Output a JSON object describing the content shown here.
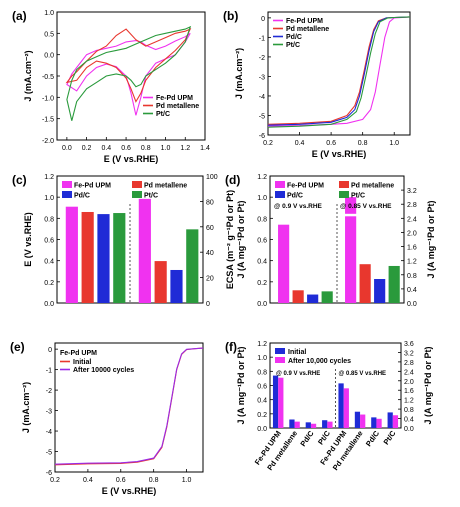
{
  "colors": {
    "magenta": "#f032f0",
    "red": "#e8372e",
    "blue": "#1f2bd6",
    "green": "#2a9a3c",
    "purple": "#9a2be6",
    "axis": "#000000"
  },
  "chart_data": [
    {
      "id": "a",
      "panel_label": "(a)",
      "type": "line",
      "xlabel": "E (V vs.RHE)",
      "ylabel": "J (mA.cm⁻²)",
      "xlim": [
        -0.1,
        1.4
      ],
      "ylim": [
        -2.0,
        1.0
      ],
      "xticks": [
        "0.0",
        "0.2",
        "0.4",
        "0.6",
        "0.8",
        "1.0",
        "1.2",
        "1.4"
      ],
      "yticks": [
        "-2.0",
        "-1.5",
        "-1.0",
        "-0.5",
        "0.0",
        "0.5",
        "1.0"
      ],
      "legend_position": "bottom-right",
      "series": [
        {
          "name": "Fe-Pd UPM",
          "color": "magenta",
          "closed": true,
          "x": [
            0.0,
            0.05,
            0.1,
            0.2,
            0.3,
            0.4,
            0.5,
            0.6,
            0.7,
            0.75,
            0.8,
            0.9,
            1.0,
            1.1,
            1.2,
            1.25,
            1.2,
            1.1,
            1.0,
            0.9,
            0.8,
            0.75,
            0.7,
            0.65,
            0.6,
            0.5,
            0.4,
            0.3,
            0.2,
            0.1,
            0.0
          ],
          "y": [
            -0.7,
            -0.45,
            -0.3,
            0.0,
            0.1,
            0.15,
            0.2,
            0.3,
            0.33,
            0.3,
            0.22,
            0.12,
            0.2,
            0.32,
            0.42,
            0.5,
            0.3,
            0.0,
            -0.1,
            -0.2,
            -0.5,
            -1.0,
            -1.42,
            -0.9,
            -0.5,
            -0.28,
            -0.22,
            -0.3,
            -0.5,
            -0.85,
            -0.7
          ]
        },
        {
          "name": "Pd metallene",
          "color": "red",
          "closed": true,
          "x": [
            0.0,
            0.05,
            0.1,
            0.2,
            0.3,
            0.4,
            0.5,
            0.6,
            0.7,
            0.8,
            0.9,
            1.0,
            1.1,
            1.2,
            1.25,
            1.2,
            1.1,
            1.0,
            0.9,
            0.8,
            0.75,
            0.7,
            0.65,
            0.6,
            0.5,
            0.4,
            0.3,
            0.2,
            0.1,
            0.0
          ],
          "y": [
            -0.65,
            -0.5,
            -0.4,
            -0.15,
            0.08,
            0.2,
            0.45,
            0.6,
            0.35,
            0.2,
            0.3,
            0.4,
            0.5,
            0.55,
            0.6,
            0.35,
            0.1,
            -0.1,
            -0.3,
            -0.6,
            -0.9,
            -1.1,
            -0.8,
            -0.55,
            -0.3,
            -0.2,
            -0.15,
            -0.3,
            -0.6,
            -0.65
          ]
        },
        {
          "name": "Pt/C",
          "color": "green",
          "closed": true,
          "x": [
            0.0,
            0.05,
            0.1,
            0.2,
            0.3,
            0.4,
            0.5,
            0.6,
            0.7,
            0.8,
            0.9,
            1.0,
            1.1,
            1.2,
            1.25,
            1.2,
            1.1,
            1.0,
            0.9,
            0.8,
            0.75,
            0.7,
            0.65,
            0.6,
            0.5,
            0.4,
            0.3,
            0.2,
            0.1,
            0.05,
            0.0
          ],
          "y": [
            -1.05,
            -0.6,
            -0.35,
            -0.15,
            -0.05,
            0.05,
            0.1,
            0.15,
            0.25,
            0.35,
            0.45,
            0.5,
            0.55,
            0.6,
            0.65,
            0.3,
            0.0,
            -0.2,
            -0.35,
            -0.5,
            -0.7,
            -0.75,
            -0.6,
            -0.5,
            -0.45,
            -0.5,
            -0.65,
            -0.8,
            -1.1,
            -1.55,
            -1.05
          ]
        }
      ]
    },
    {
      "id": "b",
      "panel_label": "(b)",
      "type": "line",
      "xlabel": "E (V vs.RHE)",
      "ylabel": "J (mA.cm⁻²)",
      "xlim": [
        0.2,
        1.1
      ],
      "ylim": [
        -6,
        0.3
      ],
      "xticks": [
        "0.2",
        "0.4",
        "0.6",
        "0.8",
        "1.0"
      ],
      "yticks": [
        "-6",
        "-5",
        "-4",
        "-3",
        "-2",
        "-1",
        "0"
      ],
      "legend_position": "top-left",
      "series": [
        {
          "name": "Fe-Pd UPM",
          "color": "magenta",
          "x": [
            0.2,
            0.4,
            0.6,
            0.7,
            0.8,
            0.85,
            0.88,
            0.91,
            0.94,
            0.97,
            1.0,
            1.05,
            1.1
          ],
          "y": [
            -5.55,
            -5.52,
            -5.45,
            -5.4,
            -5.2,
            -4.7,
            -3.8,
            -2.4,
            -1.0,
            -0.2,
            0.0,
            0.02,
            0.05
          ]
        },
        {
          "name": "Pd metallene",
          "color": "red",
          "x": [
            0.2,
            0.4,
            0.6,
            0.7,
            0.75,
            0.78,
            0.81,
            0.84,
            0.87,
            0.9,
            0.95,
            1.0,
            1.1
          ],
          "y": [
            -5.45,
            -5.4,
            -5.3,
            -5.0,
            -4.5,
            -3.8,
            -2.7,
            -1.5,
            -0.6,
            -0.15,
            0.0,
            0.02,
            0.05
          ]
        },
        {
          "name": "Pd/C",
          "color": "blue",
          "x": [
            0.2,
            0.4,
            0.6,
            0.7,
            0.75,
            0.78,
            0.81,
            0.84,
            0.87,
            0.9,
            0.95,
            1.0,
            1.1
          ],
          "y": [
            -5.5,
            -5.45,
            -5.35,
            -5.1,
            -4.7,
            -4.0,
            -2.9,
            -1.7,
            -0.7,
            -0.2,
            0.0,
            0.02,
            0.05
          ]
        },
        {
          "name": "Pt/C",
          "color": "green",
          "x": [
            0.2,
            0.4,
            0.6,
            0.7,
            0.76,
            0.79,
            0.82,
            0.85,
            0.88,
            0.91,
            0.96,
            1.0,
            1.1
          ],
          "y": [
            -5.6,
            -5.55,
            -5.45,
            -5.2,
            -4.8,
            -4.1,
            -3.0,
            -1.8,
            -0.8,
            -0.2,
            0.0,
            0.02,
            0.05
          ]
        }
      ]
    },
    {
      "id": "c",
      "panel_label": "(c)",
      "type": "bar",
      "ylabel": "E (V vs.RHE)",
      "ylabel_right": "ECSA (m⁻² g⁻¹Pd or Pt)",
      "ylim": [
        0,
        1.2
      ],
      "ylim_right": [
        0,
        100
      ],
      "yticks": [
        "0.0",
        "0.2",
        "0.4",
        "0.6",
        "0.8",
        "1.0",
        "1.2"
      ],
      "yticks_right": [
        "0",
        "20",
        "40",
        "60",
        "80",
        "100"
      ],
      "legend": [
        {
          "name": "Fe-Pd UPM",
          "color": "magenta"
        },
        {
          "name": "Pd metallene",
          "color": "red"
        },
        {
          "name": "Pd/C",
          "color": "blue"
        },
        {
          "name": "Pt/C",
          "color": "green"
        }
      ],
      "groups": [
        {
          "axis": "left",
          "bars": [
            {
              "name": "Fe-Pd UPM",
              "color": "magenta",
              "value": 0.91
            },
            {
              "name": "Pd metallene",
              "color": "red",
              "value": 0.86
            },
            {
              "name": "Pd/C",
              "color": "blue",
              "value": 0.84
            },
            {
              "name": "Pt/C",
              "color": "green",
              "value": 0.85
            }
          ]
        },
        {
          "axis": "right",
          "bars": [
            {
              "name": "Fe-Pd UPM",
              "color": "magenta",
              "value": 82
            },
            {
              "name": "Pd metallene",
              "color": "red",
              "value": 33
            },
            {
              "name": "Pd/C",
              "color": "blue",
              "value": 26
            },
            {
              "name": "Pt/C",
              "color": "green",
              "value": 58
            }
          ]
        }
      ]
    },
    {
      "id": "d",
      "panel_label": "(d)",
      "type": "bar",
      "ylabel": "J (A mg⁻¹Pd or Pt)",
      "ylabel_right": "J (A mg⁻¹Pd or Pt)",
      "ylim": [
        0,
        1.2
      ],
      "ylim_right": [
        0,
        3.6
      ],
      "yticks": [
        "0.0",
        "0.2",
        "0.4",
        "0.6",
        "0.8",
        "1.0",
        "1.2"
      ],
      "yticks_right": [
        "0.0",
        "0.4",
        "0.8",
        "1.2",
        "1.6",
        "2.0",
        "2.4",
        "2.8",
        "3.2"
      ],
      "annotations": [
        "@ 0.9 V vs.RHE",
        "@ 0.85 V vs.RHE"
      ],
      "legend": [
        {
          "name": "Fe-Pd UPM",
          "color": "magenta"
        },
        {
          "name": "Pd metallene",
          "color": "red"
        },
        {
          "name": "Pd/C",
          "color": "blue"
        },
        {
          "name": "Pt/C",
          "color": "green"
        }
      ],
      "groups": [
        {
          "axis": "left",
          "bars": [
            {
              "name": "Fe-Pd UPM",
              "color": "magenta",
              "value": 0.74
            },
            {
              "name": "Pd metallene",
              "color": "red",
              "value": 0.12
            },
            {
              "name": "Pd/C",
              "color": "blue",
              "value": 0.08
            },
            {
              "name": "Pt/C",
              "color": "green",
              "value": 0.11
            }
          ]
        },
        {
          "axis": "right",
          "bars": [
            {
              "name": "Fe-Pd UPM",
              "color": "magenta",
              "value": 3.0,
              "break_at": 2.5
            },
            {
              "name": "Pd metallene",
              "color": "red",
              "value": 1.1
            },
            {
              "name": "Pd/C",
              "color": "blue",
              "value": 0.68
            },
            {
              "name": "Pt/C",
              "color": "green",
              "value": 1.05
            }
          ]
        }
      ]
    },
    {
      "id": "e",
      "panel_label": "(e)",
      "type": "line",
      "xlabel": "E (V vs.RHE)",
      "ylabel": "J (mA.cm⁻²)",
      "xlim": [
        0.2,
        1.1
      ],
      "ylim": [
        -6,
        0.3
      ],
      "xticks": [
        "0.2",
        "0.4",
        "0.6",
        "0.8",
        "1.0"
      ],
      "yticks": [
        "-6",
        "-5",
        "-4",
        "-3",
        "-2",
        "-1",
        "0"
      ],
      "legend_title": "Fe-Pd UPM",
      "legend_position": "top-left",
      "series": [
        {
          "name": "Initial",
          "color": "red",
          "x": [
            0.2,
            0.4,
            0.6,
            0.7,
            0.8,
            0.85,
            0.88,
            0.91,
            0.94,
            0.97,
            1.0,
            1.05,
            1.1
          ],
          "y": [
            -5.65,
            -5.6,
            -5.58,
            -5.52,
            -5.35,
            -4.8,
            -3.8,
            -2.4,
            -1.0,
            -0.25,
            -0.02,
            0.02,
            0.05
          ]
        },
        {
          "name": "After 10000 cycles",
          "color": "purple",
          "x": [
            0.2,
            0.4,
            0.6,
            0.7,
            0.8,
            0.85,
            0.88,
            0.91,
            0.94,
            0.97,
            1.0,
            1.05,
            1.1
          ],
          "y": [
            -5.62,
            -5.57,
            -5.55,
            -5.49,
            -5.32,
            -4.75,
            -3.75,
            -2.35,
            -0.97,
            -0.23,
            -0.01,
            0.02,
            0.05
          ]
        }
      ]
    },
    {
      "id": "f",
      "panel_label": "(f)",
      "type": "bar",
      "ylabel": "J (A mg⁻¹Pd or Pt)",
      "ylabel_right": "J (A mg⁻¹Pd or Pt)",
      "ylim": [
        0,
        1.2
      ],
      "ylim_right": [
        0,
        3.6
      ],
      "yticks": [
        "0.0",
        "0.2",
        "0.4",
        "0.6",
        "0.8",
        "1.0",
        "1.2"
      ],
      "yticks_right": [
        "0.0",
        "0.4",
        "0.8",
        "1.2",
        "1.6",
        "2.0",
        "2.4",
        "2.8",
        "3.2",
        "3.6"
      ],
      "categories": [
        "Fe-Pd UPM",
        "Pd metallene",
        "Pd/C",
        "Pt/C",
        "Fe-Pd UPM",
        "Pd metallene",
        "Pd/C",
        "Pt/C"
      ],
      "annotations": [
        "@ 0.9 V vs.RHE",
        "@ 0.85 V vs.RHE"
      ],
      "series": [
        {
          "name": "Initial",
          "color": "blue",
          "values": [
            0.74,
            0.12,
            0.08,
            0.11,
            0.63,
            0.23,
            0.15,
            0.22
          ]
        },
        {
          "name": "After 10,000 cycles",
          "color": "magenta",
          "values": [
            0.71,
            0.09,
            0.06,
            0.09,
            0.56,
            0.19,
            0.13,
            0.18
          ]
        }
      ]
    }
  ]
}
